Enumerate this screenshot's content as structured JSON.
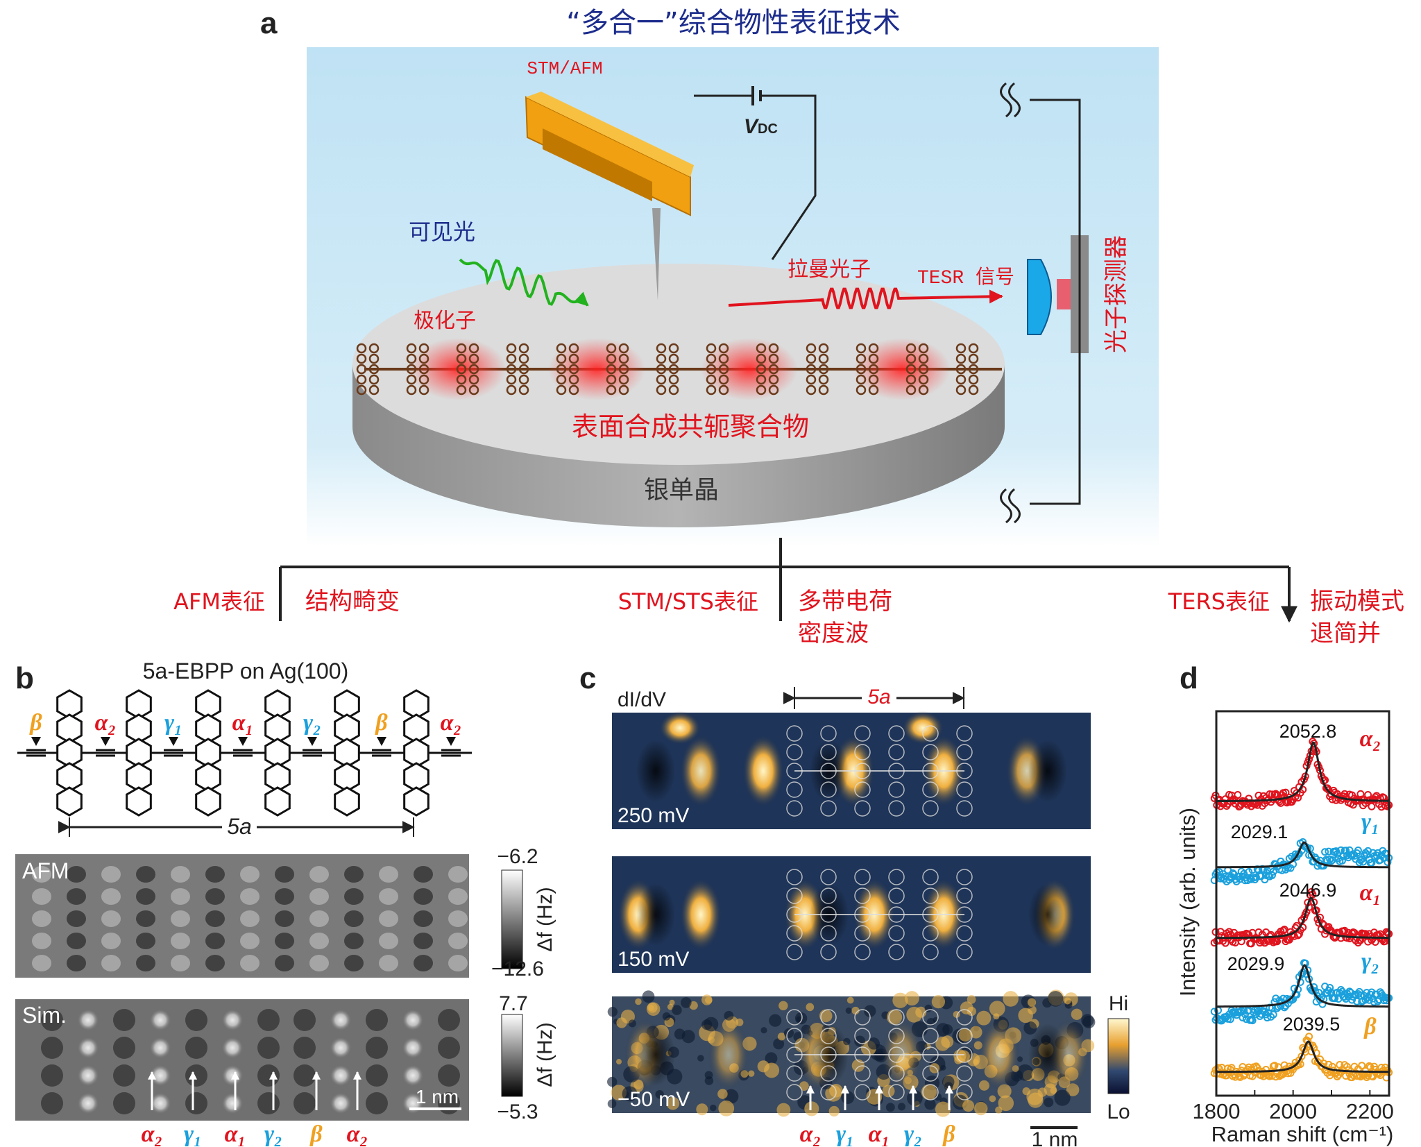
{
  "panel_a": {
    "label": "a",
    "title": "“多合一”综合物性表征技术",
    "stm_afm": "STM/AFM",
    "vdc": "V",
    "vdc_sub": "DC",
    "visible_light": "可见光",
    "polaron": "极化子",
    "raman_photon": "拉曼光子",
    "tesr_signal": "TESR 信号",
    "detector": "光子探测器",
    "polymer": "表面合成共轭聚合物",
    "substrate": "银单晶",
    "branches": [
      {
        "method": "AFM表征",
        "result": [
          "结构畸变"
        ]
      },
      {
        "method": "STM/STS表征",
        "result": [
          "多带电荷",
          "密度波"
        ]
      },
      {
        "method": "TERS表征",
        "result": [
          "振动模式",
          "退简并"
        ]
      }
    ],
    "colors": {
      "background": "#c4e4f4",
      "cantilever": "#f0a010",
      "light": "#22b21e",
      "raman": "#e0141e",
      "lens": "#1aa8e8"
    }
  },
  "panel_b": {
    "label": "b",
    "title": "5a-EBPP on Ag(100)",
    "bond_labels": [
      "β",
      "α₂",
      "γ₁",
      "α₁",
      "γ₂",
      "β",
      "α₂"
    ],
    "period": "5a",
    "afm": {
      "label": "AFM",
      "cbar_max": "−6.2",
      "cbar_min": "−12.6",
      "cbar_unit": "Δf (Hz)"
    },
    "sim": {
      "label": "Sim.",
      "cbar_max": "7.7",
      "cbar_min": "−5.3",
      "cbar_unit": "Δf (Hz)",
      "scale_bar": "1 nm"
    },
    "arrow_labels": [
      "α₂",
      "γ₁",
      "α₁",
      "γ₂",
      "β",
      "α₂"
    ]
  },
  "panel_c": {
    "label": "c",
    "quantity": "dI/dV",
    "period": "5a",
    "maps": [
      {
        "bias": "250 mV"
      },
      {
        "bias": "150 mV"
      },
      {
        "bias": "−50 mV"
      }
    ],
    "cbar_hi": "Hi",
    "cbar_lo": "Lo",
    "arrow_labels": [
      "α₂",
      "γ₁",
      "α₁",
      "γ₂",
      "β"
    ],
    "scale_bar": "1 nm"
  },
  "label_colors": {
    "α": "#e0141e",
    "γ": "#1aa0dc",
    "β": "#f0a020"
  },
  "chart_data": {
    "type": "scatter",
    "panel_label": "d",
    "xlabel": "Raman shift (cm⁻¹)",
    "ylabel": "Intensity (arb. units)",
    "xlim": [
      1800,
      2250
    ],
    "xticks": [
      1800,
      2000,
      2200
    ],
    "grid": false,
    "series": [
      {
        "name": "α₂",
        "peak": 2052.8,
        "peak_label": "2052.8",
        "color": "#e0141e"
      },
      {
        "name": "γ₁",
        "peak": 2029.1,
        "peak_label": "2029.1",
        "color": "#1aa0dc"
      },
      {
        "name": "α₁",
        "peak": 2046.9,
        "peak_label": "2046.9",
        "color": "#e0141e"
      },
      {
        "name": "γ₂",
        "peak": 2029.9,
        "peak_label": "2029.9",
        "color": "#1aa0dc"
      },
      {
        "name": "β",
        "peak": 2039.5,
        "peak_label": "2039.5",
        "color": "#f0a020"
      }
    ],
    "fit_color": "#222222"
  }
}
